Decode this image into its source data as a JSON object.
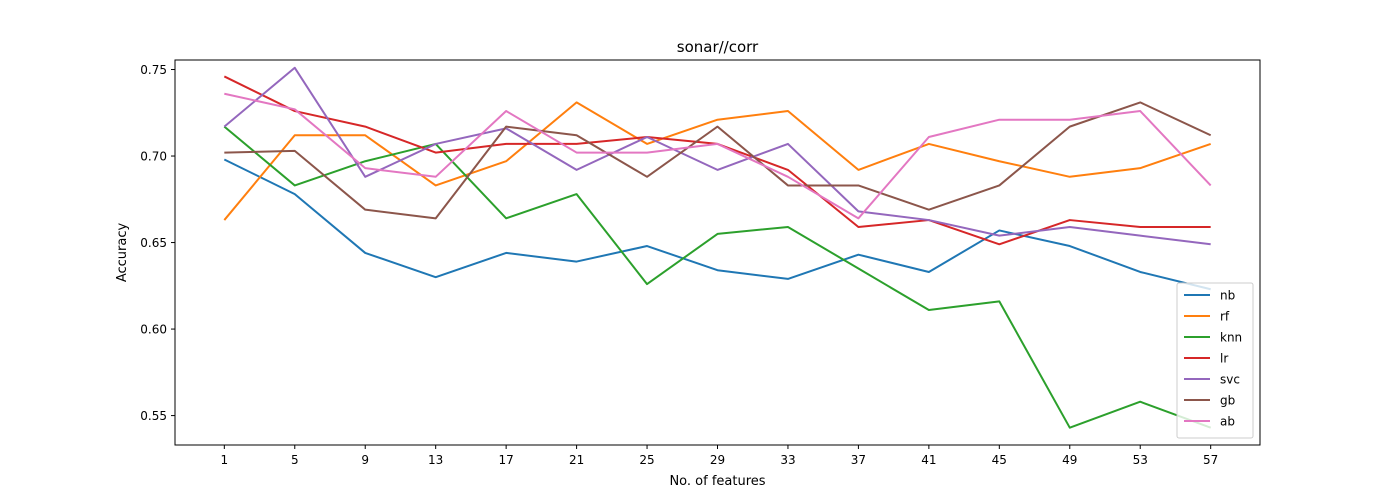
{
  "chart_data": {
    "type": "line",
    "title": "sonar//corr",
    "xlabel": "No. of features",
    "ylabel": "Accuracy",
    "x": [
      1,
      5,
      9,
      13,
      17,
      21,
      25,
      29,
      33,
      37,
      41,
      45,
      49,
      53,
      57
    ],
    "x_ticks": [
      "1",
      "5",
      "9",
      "13",
      "17",
      "21",
      "25",
      "29",
      "33",
      "37",
      "41",
      "45",
      "49",
      "53",
      "57"
    ],
    "y_ticks": [
      "0.55",
      "0.60",
      "0.65",
      "0.70",
      "0.75"
    ],
    "ylim": [
      0.533,
      0.7555
    ],
    "legend_position": "lower-right",
    "grid": false,
    "series": [
      {
        "name": "nb",
        "color": "#1f77b4",
        "values": [
          0.698,
          0.678,
          0.644,
          0.63,
          0.644,
          0.639,
          0.648,
          0.634,
          0.629,
          0.643,
          0.633,
          0.657,
          0.648,
          0.633,
          0.623
        ]
      },
      {
        "name": "rf",
        "color": "#ff7f0e",
        "values": [
          0.663,
          0.712,
          0.712,
          0.683,
          0.697,
          0.731,
          0.707,
          0.721,
          0.726,
          0.692,
          0.707,
          0.697,
          0.688,
          0.693,
          0.707
        ]
      },
      {
        "name": "knn",
        "color": "#2ca02c",
        "values": [
          0.717,
          0.683,
          0.697,
          0.707,
          0.664,
          0.678,
          0.626,
          0.655,
          0.659,
          0.635,
          0.611,
          0.616,
          0.543,
          0.558,
          0.543
        ]
      },
      {
        "name": "lr",
        "color": "#d62728",
        "values": [
          0.746,
          0.726,
          0.717,
          0.702,
          0.707,
          0.707,
          0.711,
          0.707,
          0.692,
          0.659,
          0.663,
          0.649,
          0.663,
          0.659,
          0.659
        ]
      },
      {
        "name": "svc",
        "color": "#9467bd",
        "values": [
          0.717,
          0.751,
          0.688,
          0.707,
          0.716,
          0.692,
          0.711,
          0.692,
          0.707,
          0.668,
          0.663,
          0.654,
          0.659,
          0.654,
          0.649
        ]
      },
      {
        "name": "gb",
        "color": "#8c564b",
        "values": [
          0.702,
          0.703,
          0.669,
          0.664,
          0.717,
          0.712,
          0.688,
          0.717,
          0.683,
          0.683,
          0.669,
          0.683,
          0.717,
          0.731,
          0.712
        ]
      },
      {
        "name": "ab",
        "color": "#e377c2",
        "values": [
          0.736,
          0.727,
          0.693,
          0.688,
          0.726,
          0.702,
          0.702,
          0.707,
          0.688,
          0.664,
          0.711,
          0.721,
          0.721,
          0.726,
          0.683
        ]
      }
    ]
  }
}
